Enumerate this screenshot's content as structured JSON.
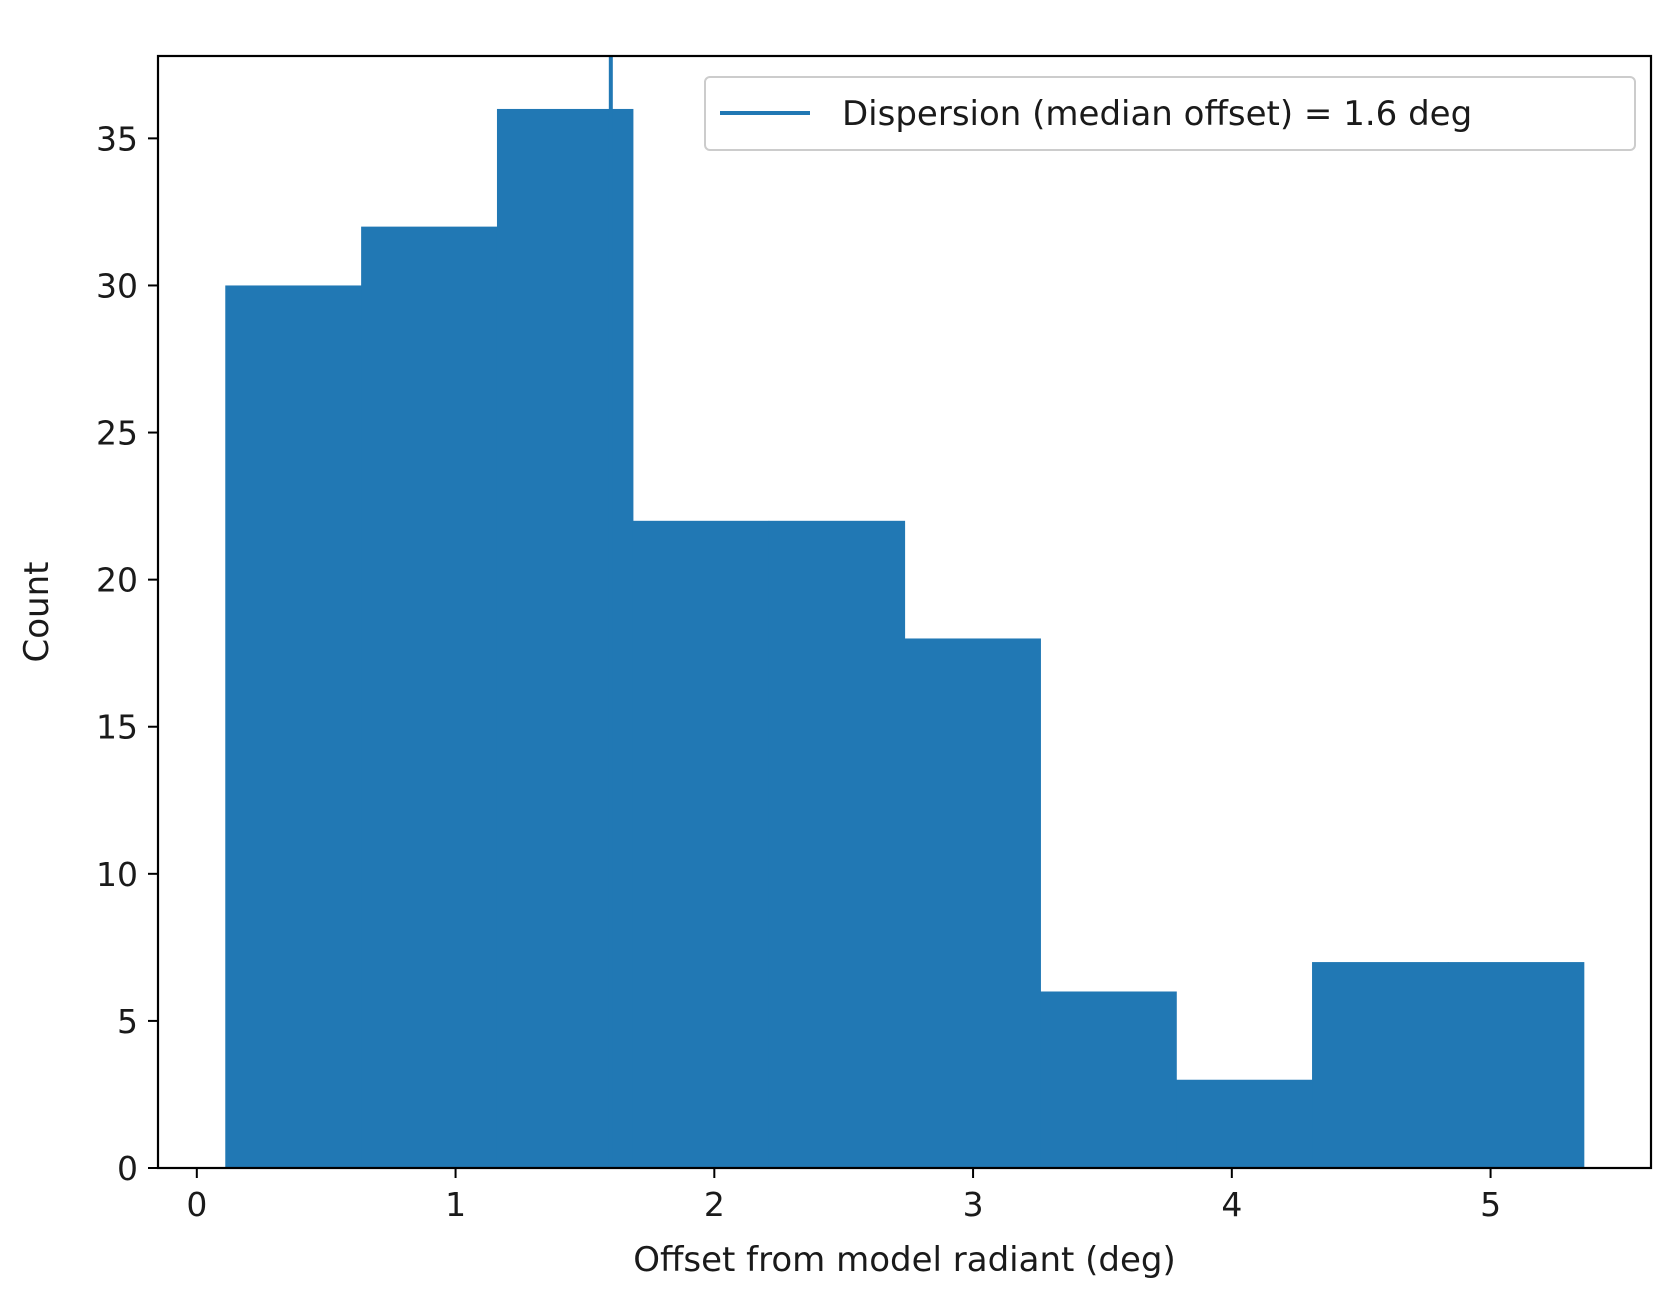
{
  "chart_data": {
    "type": "bar",
    "subtype": "histogram",
    "bins": [
      {
        "x0": 0.11,
        "x1": 0.635,
        "count": 30
      },
      {
        "x0": 0.635,
        "x1": 1.16,
        "count": 32
      },
      {
        "x0": 1.16,
        "x1": 1.685,
        "count": 36
      },
      {
        "x0": 1.685,
        "x1": 2.21,
        "count": 22
      },
      {
        "x0": 2.21,
        "x1": 2.735,
        "count": 22
      },
      {
        "x0": 2.735,
        "x1": 3.26,
        "count": 18
      },
      {
        "x0": 3.26,
        "x1": 3.785,
        "count": 6
      },
      {
        "x0": 3.785,
        "x1": 4.31,
        "count": 3
      },
      {
        "x0": 4.31,
        "x1": 4.835,
        "count": 7
      },
      {
        "x0": 4.835,
        "x1": 5.36,
        "count": 7
      }
    ],
    "vline": {
      "x": 1.6,
      "label": "Dispersion (median offset) = 1.6 deg"
    },
    "xlabel": "Offset from model radiant (deg)",
    "ylabel": "Count",
    "xlim": [
      -0.15,
      5.62
    ],
    "ylim": [
      0,
      37.8
    ],
    "xticks": [
      0,
      1,
      2,
      3,
      4,
      5
    ],
    "yticks": [
      0,
      5,
      10,
      15,
      20,
      25,
      30,
      35
    ],
    "xtick_labels": [
      "0",
      "1",
      "2",
      "3",
      "4",
      "5"
    ],
    "ytick_labels": [
      "0",
      "5",
      "10",
      "15",
      "20",
      "25",
      "30",
      "35"
    ],
    "grid": false,
    "legend_position": "top-right",
    "colors": {
      "bar": "#2178b4",
      "line": "#2178b4",
      "axis": "#000000"
    }
  }
}
